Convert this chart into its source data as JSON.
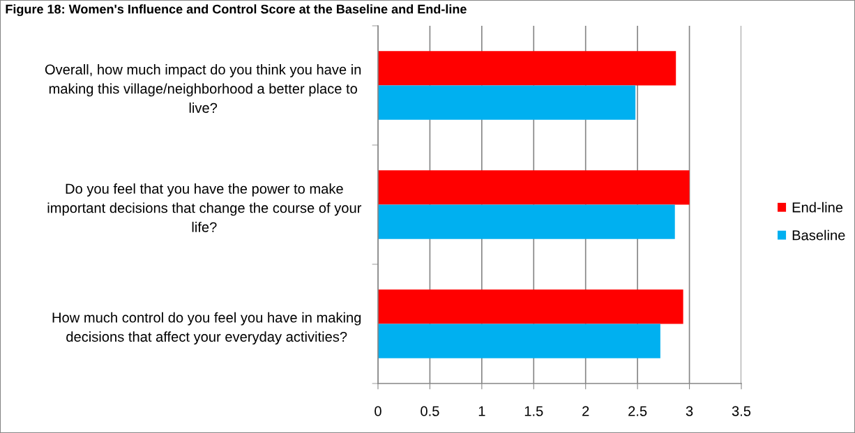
{
  "chart_data": {
    "type": "bar",
    "orientation": "horizontal",
    "title": "Figure 18: Women's Influence and Control Score at the Baseline and End-line",
    "categories": [
      "Overall, how much impact do you think you have in\nmaking this village/neighborhood a better place to\nlive?",
      "Do you feel that you have the power to make\nimportant decisions that change the course of your\nlife?",
      "How much control do you feel you have in making\ndecisions that affect your everyday activities?"
    ],
    "series": [
      {
        "name": "End-line",
        "color": "#ff0000",
        "values": [
          2.87,
          3.0,
          2.94
        ]
      },
      {
        "name": "Baseline",
        "color": "#00b0f0",
        "values": [
          2.48,
          2.86,
          2.72
        ]
      }
    ],
    "xlim": [
      0,
      3.5
    ],
    "xticks": [
      0,
      0.5,
      1,
      1.5,
      2,
      2.5,
      3,
      3.5
    ],
    "grid": "x",
    "legend": "right"
  }
}
